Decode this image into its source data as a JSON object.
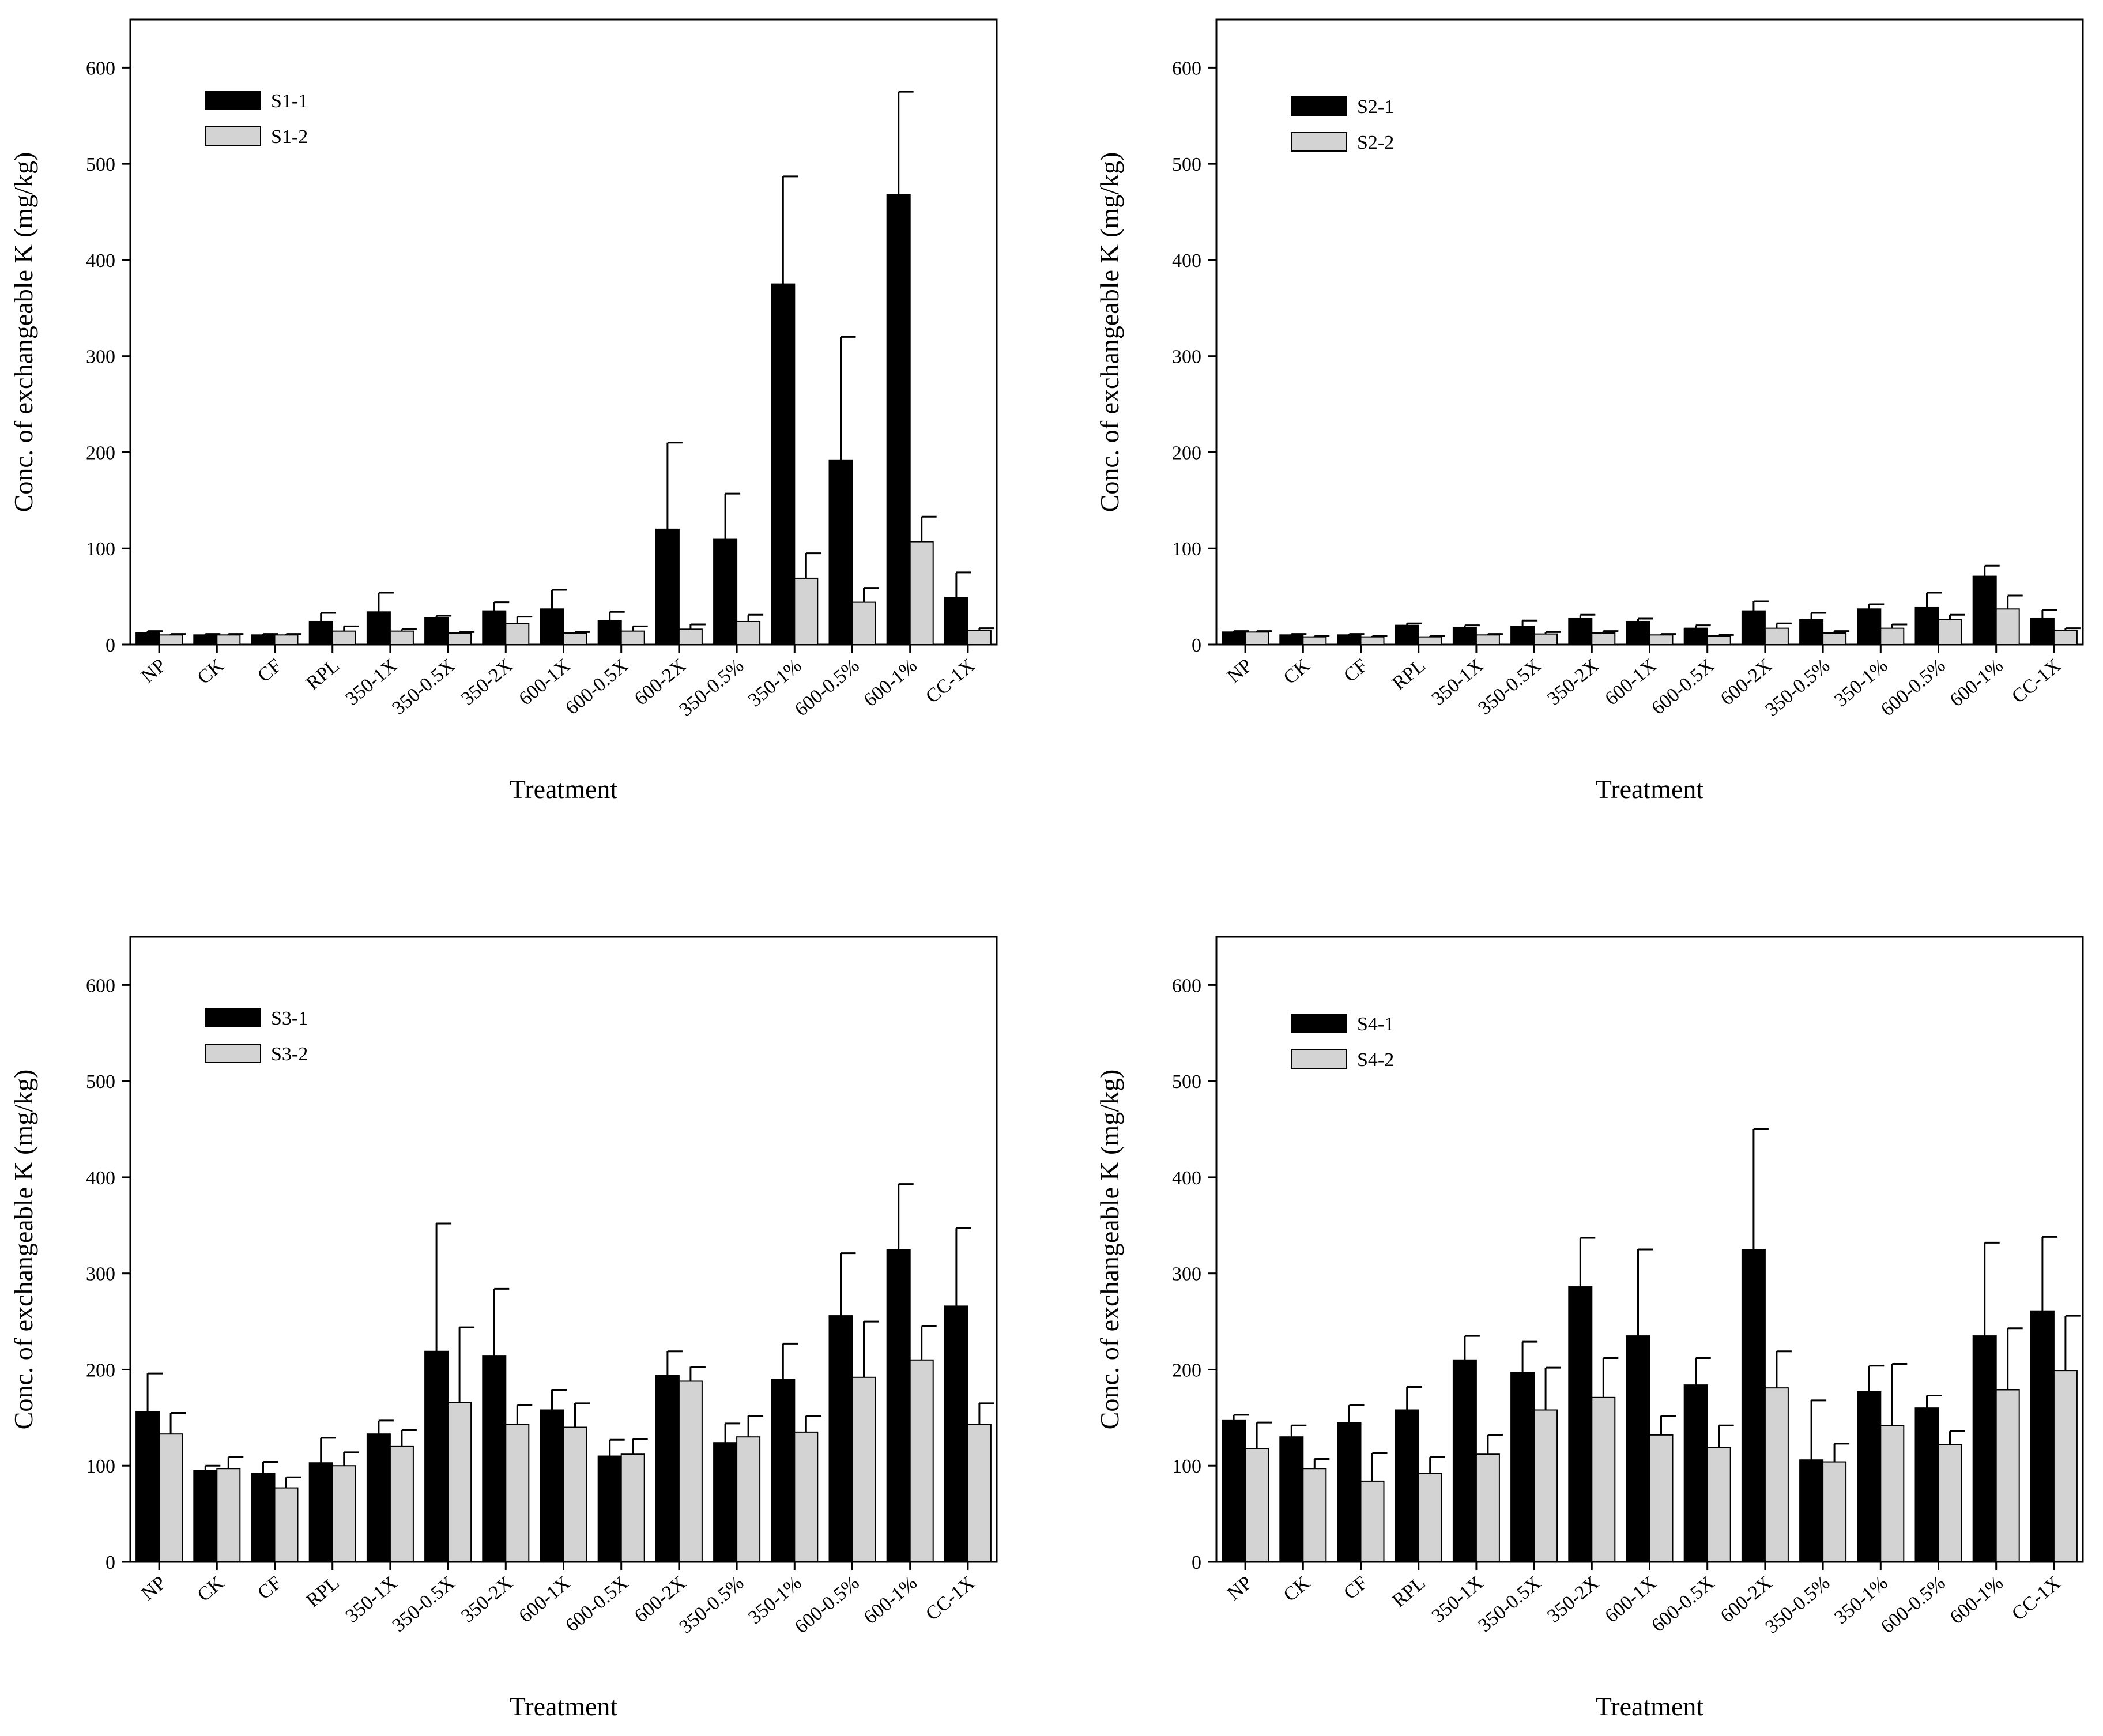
{
  "figure": {
    "ylabel": "Conc. of exchangeable K (mg/kg)",
    "xlabel": "Treatment",
    "colors": {
      "series1": "#000000",
      "series2": "#d3d3d3",
      "edge": "#000000"
    }
  },
  "chart_data": [
    {
      "type": "bar",
      "panel": "top-left",
      "categories": [
        "NP",
        "CK",
        "CF",
        "RPL",
        "350-1X",
        "350-0.5X",
        "350-2X",
        "600-1X",
        "600-0.5X",
        "600-2X",
        "350-0.5%",
        "350-1%",
        "600-0.5%",
        "600-1%",
        "CC-1X"
      ],
      "xlabel": "Treatment",
      "ylabel": "Conc. of exchangeable K (mg/kg)",
      "ylim": [
        0,
        650
      ],
      "yticks": [
        0,
        100,
        200,
        300,
        400,
        500,
        600
      ],
      "legend_position": "top-left",
      "series": [
        {
          "name": "S1-1",
          "values": [
            12,
            10,
            10,
            24,
            34,
            28,
            35,
            37,
            25,
            120,
            110,
            375,
            192,
            468,
            49
          ],
          "errors": [
            2,
            1,
            1,
            9,
            20,
            2,
            9,
            20,
            9,
            90,
            47,
            112,
            128,
            107,
            26
          ]
        },
        {
          "name": "S1-2",
          "values": [
            10,
            10,
            10,
            14,
            14,
            12,
            22,
            12,
            14,
            16,
            24,
            69,
            44,
            107,
            15
          ],
          "errors": [
            1,
            1,
            1,
            5,
            2,
            1,
            7,
            1,
            5,
            5,
            7,
            26,
            15,
            26,
            2
          ]
        }
      ]
    },
    {
      "type": "bar",
      "panel": "top-right",
      "categories": [
        "NP",
        "CK",
        "CF",
        "RPL",
        "350-1X",
        "350-0.5X",
        "350-2X",
        "600-1X",
        "600-0.5X",
        "600-2X",
        "350-0.5%",
        "350-1%",
        "600-0.5%",
        "600-1%",
        "CC-1X"
      ],
      "xlabel": "Treatment",
      "ylabel": "Conc. of exchangeable K (mg/kg)",
      "ylim": [
        0,
        650
      ],
      "yticks": [
        0,
        100,
        200,
        300,
        400,
        500,
        600
      ],
      "legend_position": "top-left",
      "series": [
        {
          "name": "S2-1",
          "values": [
            13,
            10,
            10,
            20,
            18,
            19,
            27,
            24,
            17,
            35,
            26,
            37,
            39,
            71,
            27
          ],
          "errors": [
            1,
            1,
            1,
            2,
            2,
            6,
            4,
            3,
            3,
            10,
            7,
            5,
            15,
            11,
            9
          ]
        },
        {
          "name": "S2-2",
          "values": [
            13,
            8,
            8,
            8,
            10,
            11,
            12,
            10,
            9,
            17,
            12,
            17,
            26,
            37,
            15
          ],
          "errors": [
            1,
            1,
            1,
            1,
            1,
            2,
            2,
            1,
            1,
            5,
            2,
            4,
            5,
            14,
            2
          ]
        }
      ]
    },
    {
      "type": "bar",
      "panel": "bottom-left",
      "categories": [
        "NP",
        "CK",
        "CF",
        "RPL",
        "350-1X",
        "350-0.5X",
        "350-2X",
        "600-1X",
        "600-0.5X",
        "600-2X",
        "350-0.5%",
        "350-1%",
        "600-0.5%",
        "600-1%",
        "CC-1X"
      ],
      "xlabel": "Treatment",
      "ylabel": "Conc. of exchangeable K (mg/kg)",
      "ylim": [
        0,
        650
      ],
      "yticks": [
        0,
        100,
        200,
        300,
        400,
        500,
        600
      ],
      "legend_position": "top-left",
      "series": [
        {
          "name": "S3-1",
          "values": [
            156,
            95,
            92,
            103,
            133,
            219,
            214,
            158,
            110,
            194,
            124,
            190,
            256,
            325,
            266
          ],
          "errors": [
            40,
            5,
            12,
            26,
            14,
            133,
            70,
            21,
            17,
            25,
            20,
            37,
            65,
            68,
            81
          ]
        },
        {
          "name": "S3-2",
          "values": [
            133,
            97,
            77,
            100,
            120,
            166,
            143,
            140,
            112,
            188,
            130,
            135,
            192,
            210,
            143
          ],
          "errors": [
            22,
            12,
            11,
            14,
            17,
            78,
            20,
            25,
            16,
            15,
            22,
            17,
            58,
            35,
            22
          ]
        }
      ]
    },
    {
      "type": "bar",
      "panel": "bottom-right",
      "categories": [
        "NP",
        "CK",
        "CF",
        "RPL",
        "350-1X",
        "350-0.5X",
        "350-2X",
        "600-1X",
        "600-0.5X",
        "600-2X",
        "350-0.5%",
        "350-1%",
        "600-0.5%",
        "600-1%",
        "CC-1X"
      ],
      "xlabel": "Treatment",
      "ylabel": "Conc. of exchangeable K (mg/kg)",
      "ylim": [
        0,
        650
      ],
      "yticks": [
        0,
        100,
        200,
        300,
        400,
        500,
        600
      ],
      "legend_position": "top-left",
      "series": [
        {
          "name": "S4-1",
          "values": [
            147,
            130,
            145,
            158,
            210,
            197,
            286,
            235,
            184,
            325,
            106,
            177,
            160,
            235,
            261
          ],
          "errors": [
            6,
            12,
            18,
            24,
            25,
            32,
            51,
            90,
            28,
            125,
            62,
            27,
            13,
            97,
            77
          ]
        },
        {
          "name": "S4-2",
          "values": [
            118,
            97,
            84,
            92,
            112,
            158,
            171,
            132,
            119,
            181,
            104,
            142,
            122,
            179,
            199
          ],
          "errors": [
            27,
            10,
            29,
            17,
            20,
            44,
            41,
            20,
            23,
            38,
            19,
            64,
            14,
            64,
            57
          ]
        }
      ]
    }
  ]
}
